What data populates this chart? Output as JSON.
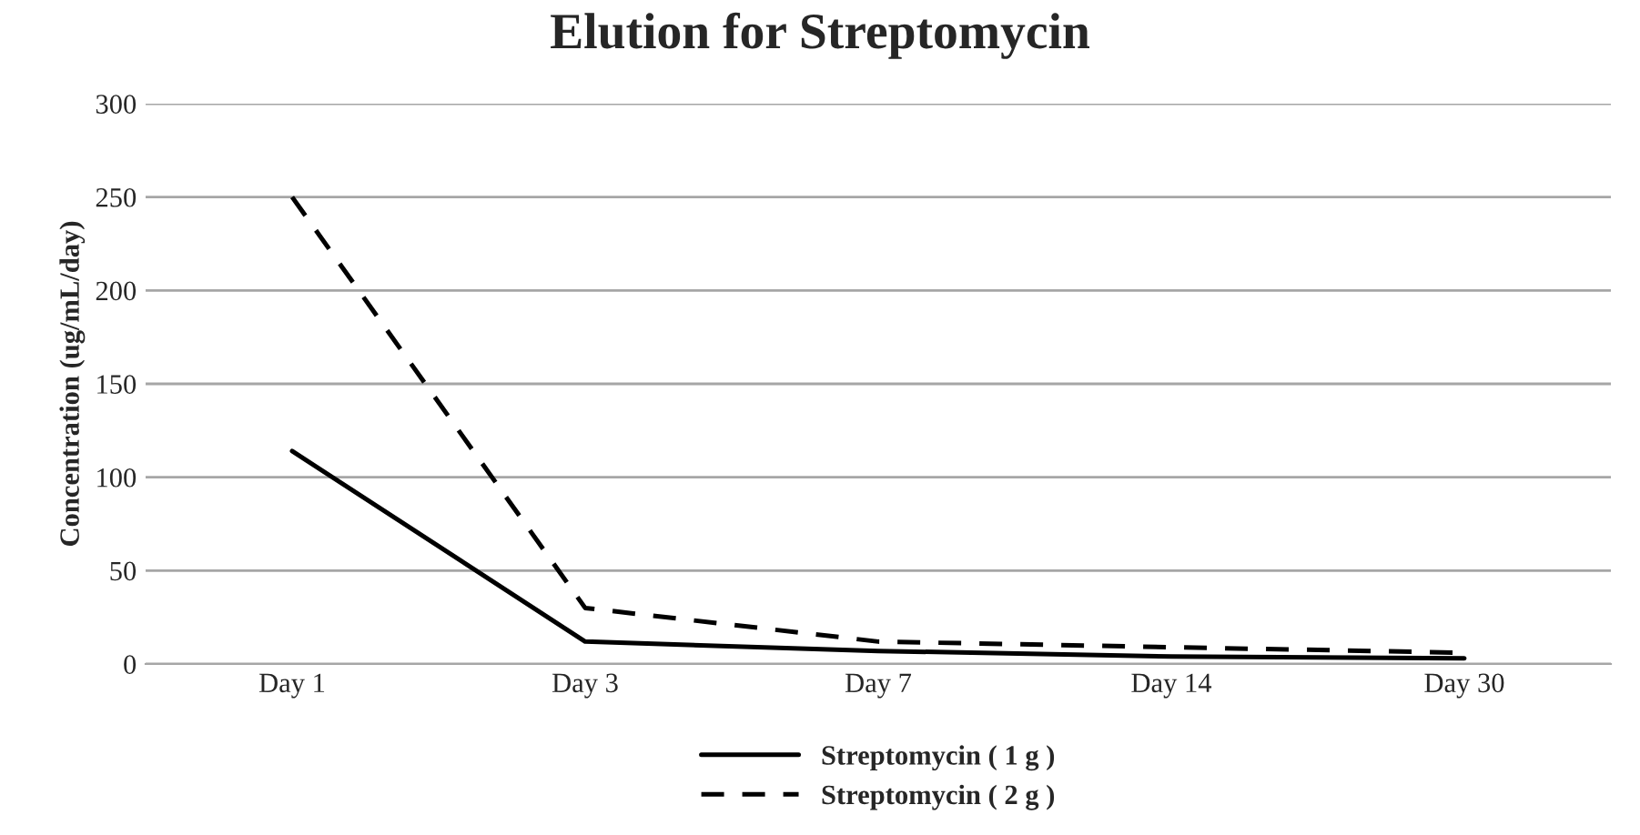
{
  "chart_data": {
    "type": "line",
    "title": "Elution for Streptomycin",
    "ylabel": "Concentration (ug/mL/day)",
    "categories": [
      "Day 1",
      "Day 3",
      "Day 7",
      "Day 14",
      "Day 30"
    ],
    "series": [
      {
        "name": "Streptomycin ( 1 g )",
        "color": "#000000",
        "line_style": "solid",
        "values": [
          114,
          12,
          7,
          4,
          3
        ]
      },
      {
        "name": "Streptomycin ( 2 g )",
        "color": "#000000",
        "line_style": "dashed",
        "values": [
          250,
          30,
          12,
          9,
          6
        ]
      }
    ],
    "ylim": [
      0,
      300
    ],
    "yticks": [
      0,
      50,
      100,
      150,
      200,
      250,
      300
    ],
    "grid": "y",
    "legend": "bottom",
    "marker": "none"
  }
}
